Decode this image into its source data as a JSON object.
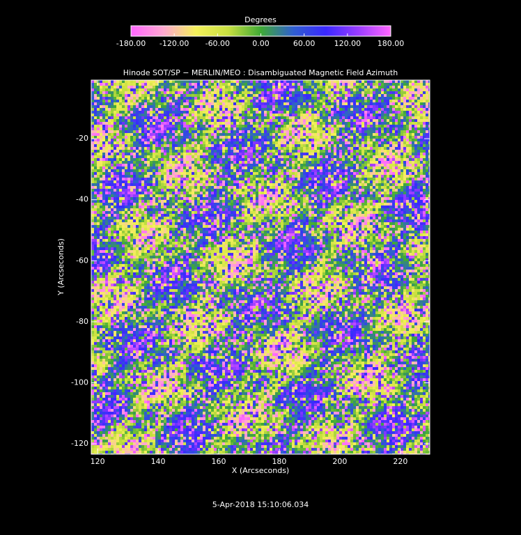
{
  "chart_data": {
    "type": "heatmap",
    "title": "Hinode SOT/SP − MERLIN/MEO : Disambiguated Magnetic Field Azimuth",
    "x_label": "X (Arcseconds)",
    "y_label": "Y (Arcseconds)",
    "xlim": [
      117.9,
      229.7
    ],
    "ylim": [
      -123.4,
      -0.8
    ],
    "xticks": [
      120,
      140,
      160,
      180,
      200,
      220
    ],
    "yticks": [
      -120,
      -100,
      -80,
      -60,
      -40,
      -20
    ],
    "colorbar": {
      "label": "Degrees",
      "lim": [
        -180,
        180
      ],
      "ticks": [
        {
          "value": -180,
          "label": "-180.00"
        },
        {
          "value": -120,
          "label": "-120.00"
        },
        {
          "value": -60,
          "label": "-60.00"
        },
        {
          "value": 0,
          "label": "0.00"
        },
        {
          "value": 60,
          "label": "60.00"
        },
        {
          "value": 120,
          "label": "120.00"
        },
        {
          "value": 180,
          "label": "180.00"
        }
      ],
      "colormap": [
        "#ff66ff",
        "#ffa8d0",
        "#f4f05a",
        "#c8e040",
        "#3faa35",
        "#2f5fd0",
        "#3a28ff",
        "#9a3cff",
        "#ff66ff"
      ]
    },
    "footer": "5-Apr-2018 15:10:06.034"
  }
}
